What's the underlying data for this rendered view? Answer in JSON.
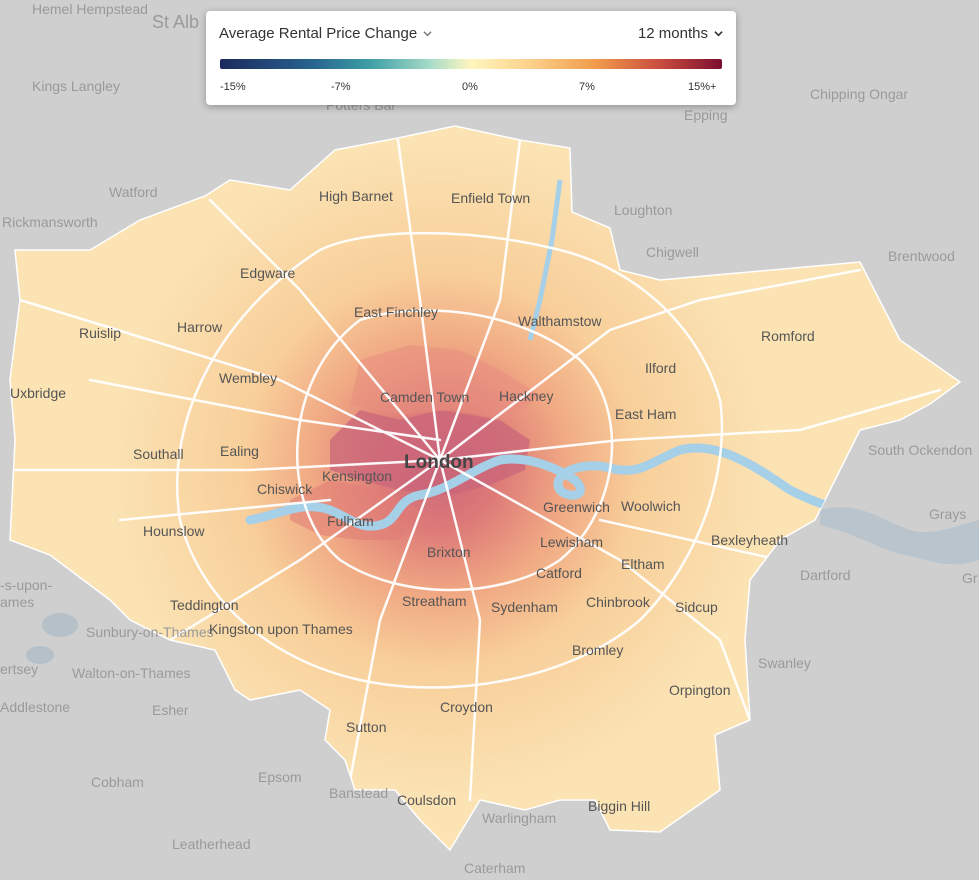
{
  "legend": {
    "metric_label": "Average Rental Price Change",
    "period_label": "12 months",
    "ticks": [
      "-15%",
      "-7%",
      "0%",
      "7%",
      "15%+"
    ],
    "gradient_colors": [
      "#1c2a5e",
      "#27628e",
      "#3f9fa6",
      "#a8dcc8",
      "#fff6bf",
      "#fbd089",
      "#f19a4b",
      "#c74b3e",
      "#7c0f2f"
    ]
  },
  "map": {
    "title_label": "London",
    "outside_places": [
      "Hemel Hempstead",
      "St Alb",
      "Kings Langley",
      "Potters Bar",
      "Watford",
      "Rickmansworth",
      "Loughton",
      "Epping",
      "Chipping Ongar",
      "Chigwell",
      "Brentwood",
      "South Ockendon",
      "Grays",
      "Dartford",
      "Swanley",
      "Caterham",
      "Warlingham",
      "Leatherhead",
      "Cobham",
      "Epsom",
      "Banstead",
      "Esher",
      "Addlestone",
      "Walton-on-Thames",
      "Sunbury-on-Thames",
      "-s-upon-",
      "ames",
      "ertsey",
      "Gr"
    ],
    "inside_places": [
      "High Barnet",
      "Enfield Town",
      "Edgware",
      "East Finchley",
      "Walthamstow",
      "Romford",
      "Ruislip",
      "Harrow",
      "Wembley",
      "Ilford",
      "Uxbridge",
      "Camden Town",
      "Hackney",
      "East Ham",
      "Southall",
      "Ealing",
      "Kensington",
      "Chiswick",
      "Fulham",
      "Greenwich",
      "Woolwich",
      "Bexleyheath",
      "Hounslow",
      "Brixton",
      "Lewisham",
      "Catford",
      "Eltham",
      "Teddington",
      "Kingston upon Thames",
      "Streatham",
      "Sydenham",
      "Chinbrook",
      "Sidcup",
      "Bromley",
      "Orpington",
      "Croydon",
      "Sutton",
      "Coulsdon",
      "Biggin Hill"
    ],
    "colors": {
      "background": "#cfcfcf",
      "base": "#fbe3b4",
      "mid": "#f6c48f",
      "hot": "#e98a73",
      "core": "#c9667a",
      "river": "#a6cfe8",
      "road": "#ffffff"
    }
  }
}
